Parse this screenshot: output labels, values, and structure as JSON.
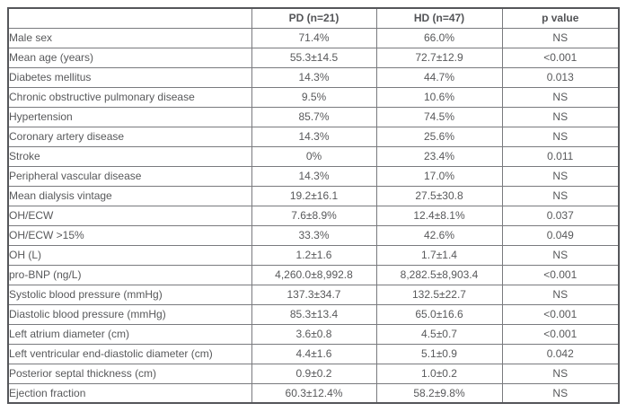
{
  "table": {
    "columns": {
      "label": "",
      "pd": "PD (n=21)",
      "hd": "HD (n=47)",
      "p": "p value"
    },
    "rows": [
      {
        "label": "Male sex",
        "pd": "71.4%",
        "hd": "66.0%",
        "p": "NS"
      },
      {
        "label": "Mean age (years)",
        "pd": "55.3±14.5",
        "hd": "72.7±12.9",
        "p": "<0.001"
      },
      {
        "label": "Diabetes mellitus",
        "pd": "14.3%",
        "hd": "44.7%",
        "p": "0.013"
      },
      {
        "label": "Chronic obstructive pulmonary disease",
        "pd": "9.5%",
        "hd": "10.6%",
        "p": "NS"
      },
      {
        "label": "Hypertension",
        "pd": "85.7%",
        "hd": "74.5%",
        "p": "NS"
      },
      {
        "label": "Coronary artery disease",
        "pd": "14.3%",
        "hd": "25.6%",
        "p": "NS"
      },
      {
        "label": "Stroke",
        "pd": "0%",
        "hd": "23.4%",
        "p": "0.011"
      },
      {
        "label": "Peripheral vascular disease",
        "pd": "14.3%",
        "hd": "17.0%",
        "p": "NS"
      },
      {
        "label": "Mean dialysis vintage",
        "pd": "19.2±16.1",
        "hd": "27.5±30.8",
        "p": "NS"
      },
      {
        "label": "OH/ECW",
        "pd": "7.6±8.9%",
        "hd": "12.4±8.1%",
        "p": "0.037"
      },
      {
        "label": "OH/ECW >15%",
        "pd": "33.3%",
        "hd": "42.6%",
        "p": "0.049"
      },
      {
        "label": "OH (L)",
        "pd": "1.2±1.6",
        "hd": "1.7±1.4",
        "p": "NS"
      },
      {
        "label": "pro-BNP (ng/L)",
        "pd": "4,260.0±8,992.8",
        "hd": "8,282.5±8,903.4",
        "p": "<0.001"
      },
      {
        "label": "Systolic blood pressure (mmHg)",
        "pd": "137.3±34.7",
        "hd": "132.5±22.7",
        "p": "NS"
      },
      {
        "label": "Diastolic blood pressure (mmHg)",
        "pd": "85.3±13.4",
        "hd": "65.0±16.6",
        "p": "<0.001"
      },
      {
        "label": "Left atrium diameter (cm)",
        "pd": "3.6±0.8",
        "hd": "4.5±0.7",
        "p": "<0.001"
      },
      {
        "label": "Left ventricular end-diastolic diameter (cm)",
        "pd": "4.4±1.6",
        "hd": "5.1±0.9",
        "p": "0.042"
      },
      {
        "label": "Posterior septal thickness (cm)",
        "pd": "0.9±0.2",
        "hd": "1.0±0.2",
        "p": "NS"
      },
      {
        "label": "Ejection fraction",
        "pd": "60.3±12.4%",
        "hd": "58.2±9.8%",
        "p": "NS"
      }
    ]
  }
}
